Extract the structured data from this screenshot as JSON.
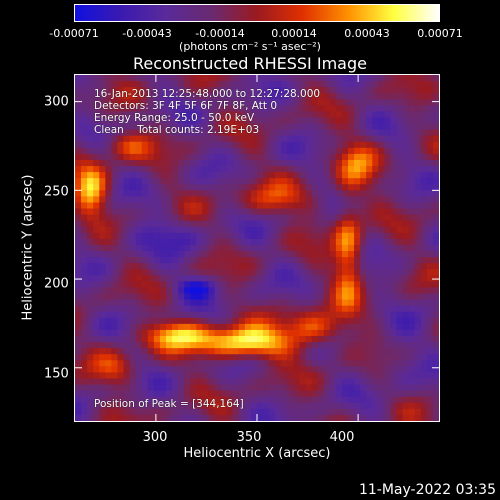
{
  "colorbar": {
    "ticks": [
      "-0.00071",
      "-0.00043",
      "-0.00014",
      "0.00014",
      "0.00043",
      "0.00071"
    ],
    "units": "(photons cm⁻² s⁻¹ asec⁻²)",
    "colors": [
      "#1010e0",
      "#3a1ab0",
      "#5a2a9a",
      "#6a2a70",
      "#9a1a20",
      "#e03000",
      "#ff9000",
      "#ffff40",
      "#ffffff"
    ]
  },
  "chart_data": {
    "type": "heatmap",
    "title": "Reconstructed RHESSI Image",
    "xlabel": "Heliocentric X (arcsec)",
    "ylabel": "Heliocentric Y (arcsec)",
    "xlim": [
      260,
      440
    ],
    "ylim": [
      120,
      315
    ],
    "xticks": [
      "300",
      "350",
      "400"
    ],
    "yticks": [
      "150",
      "200",
      "250",
      "300"
    ],
    "peak": [
      344,
      164
    ]
  },
  "info": {
    "time": "16-Jan-2013 12:25:48.000 to 12:27:28.000",
    "detectors": "Detectors: 3F 4F 5F 6F 7F 8F, Att 0",
    "energy": "Energy Range: 25.0 - 50.0 keV",
    "clean": "Clean    Total counts: 2.19E+03",
    "peak_text": "Position of Peak = [344,164]"
  },
  "footer": {
    "timestamp": "11-May-2022 03:35"
  }
}
